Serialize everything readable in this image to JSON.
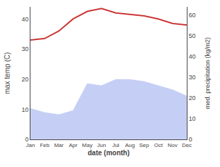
{
  "chart_data": {
    "type": "line",
    "categories": [
      "Jan",
      "Feb",
      "Mar",
      "Apr",
      "May",
      "Jun",
      "Jul",
      "Aug",
      "Sep",
      "Oct",
      "Nov",
      "Dec"
    ],
    "xlabel": "date (month)",
    "ylabel": "max temp (C)",
    "y2label": "med. precipitation (kg/m2)",
    "series": [
      {
        "type": "line",
        "color": "#cc3333",
        "values": [
          33,
          33.5,
          36,
          40,
          42.5,
          43.5,
          42,
          41.5,
          41,
          40,
          38.5,
          38
        ]
      },
      {
        "type": "area",
        "color": "#c5cff5",
        "axis": "y2",
        "values": [
          15,
          13,
          12,
          14,
          27,
          26,
          29,
          29,
          28,
          26,
          24,
          21
        ]
      }
    ],
    "ylim": [
      0,
      44
    ],
    "yticks": [
      0,
      10,
      20,
      30,
      40
    ],
    "y2lim": [
      0,
      64
    ],
    "y2ticks": [
      0,
      10,
      20,
      30,
      40,
      50,
      60
    ],
    "grid": false
  }
}
